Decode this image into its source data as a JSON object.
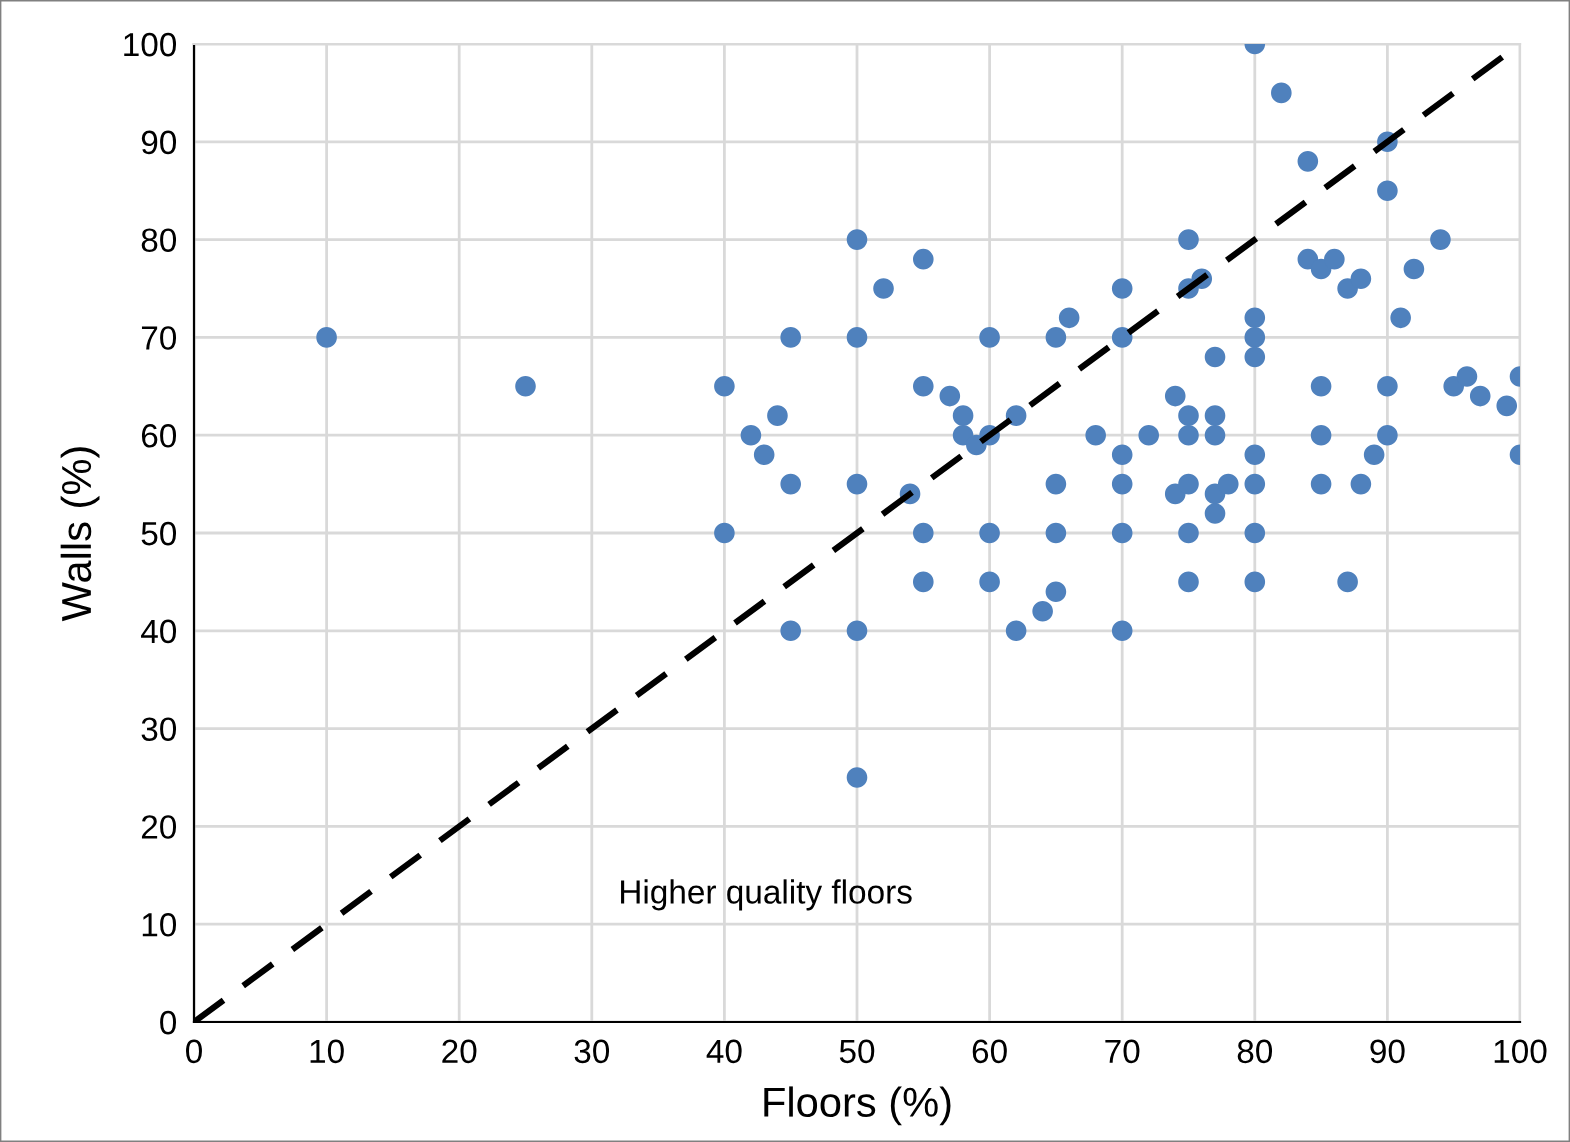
{
  "chart_data": {
    "type": "scatter",
    "xlabel": "Floors (%)",
    "ylabel": "Walls (%)",
    "xlim": [
      0,
      100
    ],
    "ylim": [
      0,
      100
    ],
    "xticks": [
      0,
      10,
      20,
      30,
      40,
      50,
      60,
      70,
      80,
      90,
      100
    ],
    "yticks": [
      0,
      10,
      20,
      30,
      40,
      50,
      60,
      70,
      80,
      90,
      100
    ],
    "grid": true,
    "legend": false,
    "marker": "circle",
    "annotations": [
      "Higher quality floors"
    ],
    "series": [
      {
        "color": "#4f81bd",
        "x": [
          10,
          25,
          40,
          40,
          42,
          43,
          44,
          45,
          45,
          45,
          50,
          50,
          50,
          50,
          50,
          52,
          54,
          55,
          55,
          55,
          55,
          57,
          58,
          58,
          59,
          60,
          60,
          60,
          60,
          62,
          62,
          64,
          65,
          65,
          65,
          65,
          66,
          68,
          70,
          70,
          70,
          70,
          70,
          70,
          72,
          74,
          74,
          75,
          75,
          76,
          75,
          75,
          75,
          75,
          75,
          77,
          77,
          77,
          77,
          77,
          78,
          80,
          80,
          80,
          80,
          80,
          80,
          80,
          80,
          82,
          84,
          84,
          85,
          86,
          85,
          85,
          85,
          87,
          87,
          88,
          88,
          89,
          90,
          90,
          90,
          90,
          91,
          92,
          94,
          95,
          96,
          97,
          99,
          100,
          100
        ],
        "values": [
          70,
          65,
          65,
          50,
          60,
          58,
          62,
          70,
          55,
          40,
          80,
          70,
          55,
          40,
          25,
          75,
          54,
          78,
          65,
          50,
          45,
          64,
          62,
          60,
          59,
          60,
          70,
          50,
          45,
          62,
          40,
          42,
          44,
          70,
          55,
          50,
          72,
          60,
          75,
          70,
          58,
          55,
          50,
          40,
          60,
          64,
          54,
          80,
          75,
          76,
          62,
          60,
          55,
          50,
          45,
          68,
          62,
          60,
          54,
          52,
          55,
          100,
          72,
          70,
          68,
          58,
          55,
          50,
          45,
          95,
          88,
          78,
          77,
          78,
          65,
          60,
          55,
          75,
          45,
          76,
          55,
          58,
          90,
          85,
          65,
          60,
          72,
          77,
          80,
          65,
          66,
          64,
          63,
          66,
          58
        ]
      },
      {
        "type": "line",
        "color": "#000000",
        "line_style": "dashed",
        "marker": "none",
        "x": [
          0,
          100
        ],
        "values": [
          0,
          100
        ]
      }
    ]
  }
}
